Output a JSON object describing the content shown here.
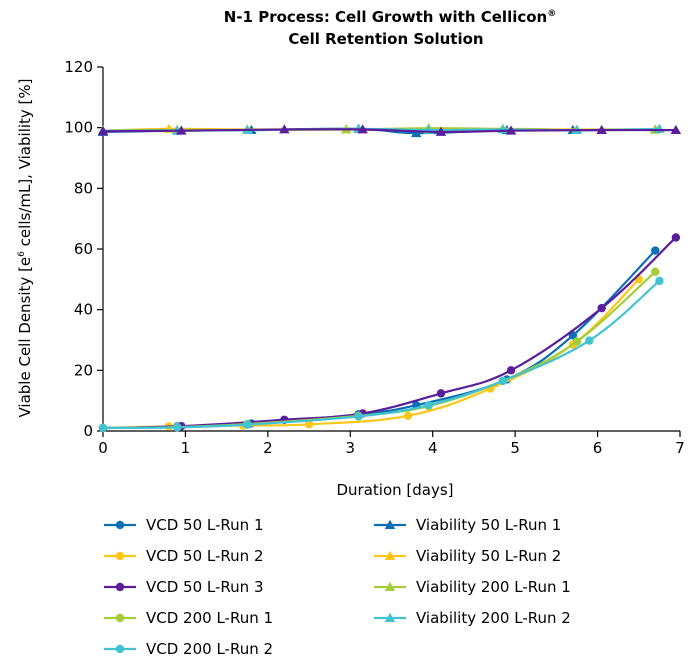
{
  "chart_data": {
    "type": "line",
    "title_line1": "N-1 Process: Cell Growth with Cellicon",
    "title_mark": "®",
    "title_line2": "Cell Retention Solution",
    "xlabel": "Duration [days]",
    "ylabel_part1": "Viable Cell Density [e",
    "ylabel_sup": "6",
    "ylabel_part2": " cells/mL], Viability [%]",
    "xlim": [
      0,
      7
    ],
    "ylim": [
      0,
      120
    ],
    "xticks": [
      "0",
      "1",
      "2",
      "3",
      "4",
      "5",
      "6",
      "7"
    ],
    "yticks": [
      "0",
      "20",
      "40",
      "60",
      "80",
      "100",
      "120"
    ],
    "grid": false,
    "legend_position": "bottom",
    "series": [
      {
        "name": "VCD 50 L-Run 1",
        "color": "#0a6fb4",
        "marker": "circle",
        "x": [
          0,
          0.9,
          1.8,
          3.1,
          3.8,
          4.9,
          5.7,
          6.7
        ],
        "y": [
          1,
          1.5,
          2.5,
          5.5,
          8.5,
          17,
          31.5,
          59.5
        ]
      },
      {
        "name": "VCD 50 L-Run 2",
        "color": "#ffc619",
        "marker": "circle",
        "x": [
          0,
          0.8,
          1.7,
          2.5,
          3.7,
          4.7,
          5.7,
          6.5
        ],
        "y": [
          1,
          1.5,
          1.8,
          2.2,
          5,
          14,
          28.5,
          50
        ]
      },
      {
        "name": "VCD 50 L-Run 3",
        "color": "#5a1e9b",
        "marker": "circle",
        "x": [
          0,
          0.95,
          2.2,
          3.15,
          4.1,
          4.95,
          6.05,
          6.95
        ],
        "y": [
          1,
          1.6,
          3.7,
          5.8,
          12.4,
          20,
          40.5,
          63.8
        ]
      },
      {
        "name": "VCD 200 L-Run 1",
        "color": "#a5cd39",
        "marker": "circle",
        "x": [
          0,
          0.9,
          1.75,
          3.1,
          3.95,
          4.85,
          5.75,
          6.7
        ],
        "y": [
          1,
          1.3,
          2.3,
          5,
          8.2,
          16.5,
          29.5,
          52.5
        ]
      },
      {
        "name": "VCD 200 L-Run 2",
        "color": "#41c3d2",
        "marker": "circle",
        "x": [
          0,
          0.9,
          1.75,
          3.1,
          3.95,
          4.85,
          5.9,
          6.75
        ],
        "y": [
          1,
          1.2,
          2.1,
          4.8,
          8.5,
          16.5,
          29.8,
          49.5
        ]
      },
      {
        "name": "Viability 50 L-Run 1",
        "color": "#0a6fb4",
        "marker": "triangle",
        "x": [
          0,
          0.9,
          1.8,
          3.1,
          3.8,
          4.9,
          5.7,
          6.7
        ],
        "y": [
          98.6,
          99,
          99.2,
          99.6,
          98.2,
          99.2,
          99.2,
          99.4
        ]
      },
      {
        "name": "Viability 50 L-Run 2",
        "color": "#ffc619",
        "marker": "triangle",
        "x": [
          0,
          0.8,
          1.75,
          2.95,
          3.95,
          4.85,
          5.75,
          6.7
        ],
        "y": [
          99,
          99.6,
          99.4,
          99.4,
          99.2,
          99.6,
          99.4,
          99.4
        ]
      },
      {
        "name": "Viability 200 L-Run 1",
        "color": "#a5cd39",
        "marker": "triangle",
        "x": [
          0,
          0.9,
          1.75,
          2.95,
          3.95,
          4.85,
          5.75,
          6.7
        ],
        "y": [
          99,
          99.3,
          99.2,
          99.4,
          99.8,
          99.6,
          99.2,
          99.3
        ]
      },
      {
        "name": "Viability 200 L-Run 2",
        "color": "#41c3d2",
        "marker": "triangle",
        "x": [
          0,
          0.9,
          1.75,
          3.1,
          3.95,
          4.85,
          5.75,
          6.75
        ],
        "y": [
          99,
          99,
          99.2,
          99.6,
          99.2,
          99.4,
          99.2,
          99.6
        ]
      },
      {
        "name": "",
        "color": "#5a1e9b",
        "marker": "triangle",
        "x": [
          0,
          0.95,
          2.2,
          3.15,
          4.1,
          4.95,
          6.05,
          6.95
        ],
        "y": [
          98.8,
          99,
          99.4,
          99.4,
          98.6,
          99,
          99.2,
          99.2
        ]
      }
    ]
  }
}
